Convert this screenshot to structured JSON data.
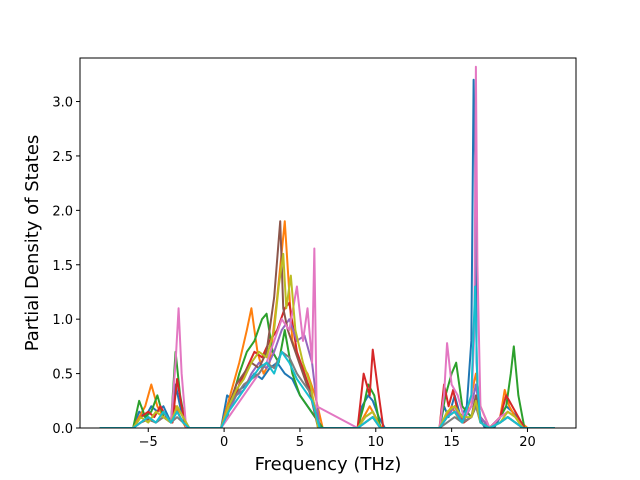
{
  "chart_data": {
    "type": "line",
    "title": "",
    "xlabel": "Frequency (THz)",
    "ylabel": "Partial Density of States",
    "xlim": [
      -9.5,
      23.2
    ],
    "ylim": [
      0,
      3.4
    ],
    "xticks": [
      -5,
      0,
      5,
      10,
      15,
      20
    ],
    "yticks": [
      0.0,
      0.5,
      1.0,
      1.5,
      2.0,
      2.5,
      3.0
    ],
    "xtick_labels": [
      "−5",
      "0",
      "5",
      "10",
      "15",
      "20"
    ],
    "ytick_labels": [
      "0.0",
      "0.5",
      "1.0",
      "1.5",
      "2.0",
      "2.5",
      "3.0"
    ],
    "grid": false,
    "legend": "none",
    "series": [
      {
        "color": "#1f77b4",
        "x": [
          -8.2,
          -6,
          -5.6,
          -5.2,
          -4.8,
          -4.4,
          -4,
          -3.5,
          -3.2,
          -2.9,
          -2.5,
          -0.2,
          0.2,
          0.6,
          1,
          1.5,
          2,
          2.5,
          3,
          3.5,
          4,
          4.5,
          5,
          5.5,
          6,
          6.5,
          8.8,
          9.1,
          9.5,
          9.8,
          10.2,
          10.6,
          14.2,
          14.5,
          14.8,
          15.2,
          15.6,
          16,
          16.3,
          16.45,
          16.55,
          16.65,
          16.8,
          17.2,
          17.8,
          18.2,
          18.6,
          19,
          19.3,
          19.6,
          20,
          21.8
        ],
        "y": [
          0,
          0,
          0.15,
          0.1,
          0.2,
          0.15,
          0.2,
          0.05,
          0.4,
          0.2,
          0,
          0,
          0.3,
          0.25,
          0.35,
          0.4,
          0.5,
          0.45,
          0.55,
          0.6,
          0.5,
          0.45,
          0.3,
          0.2,
          0.1,
          0,
          0,
          0.2,
          0.3,
          0.25,
          0.1,
          0,
          0,
          0.2,
          0.1,
          0.3,
          0.1,
          0.2,
          0.8,
          3.2,
          2.5,
          0.6,
          0.1,
          0,
          0,
          0.1,
          0.2,
          0.15,
          0.1,
          0,
          0,
          0
        ]
      },
      {
        "color": "#ff7f0e",
        "x": [
          -8.2,
          -6,
          -5.6,
          -5.2,
          -4.8,
          -4.4,
          -4,
          -3.5,
          -3.2,
          -2.9,
          -2.5,
          -0.2,
          0.2,
          0.6,
          1,
          1.5,
          1.8,
          2.2,
          2.6,
          3,
          3.5,
          4,
          4.5,
          5,
          5.5,
          6,
          6.5,
          8.8,
          9.2,
          9.6,
          10,
          10.4,
          14.2,
          14.6,
          15,
          15.4,
          15.8,
          16.3,
          16.6,
          16.9,
          17.5,
          18.2,
          18.5,
          18.8,
          19.2,
          19.6,
          20,
          21.8
        ],
        "y": [
          0,
          0,
          0.1,
          0.2,
          0.4,
          0.2,
          0.1,
          0.05,
          0.2,
          0.1,
          0,
          0,
          0.2,
          0.4,
          0.6,
          0.9,
          1.1,
          0.7,
          0.5,
          0.6,
          1.2,
          1.9,
          0.8,
          0.6,
          0.5,
          0.3,
          0,
          0,
          0.1,
          0.2,
          0.1,
          0,
          0,
          0.1,
          0.2,
          0.1,
          0.05,
          0.3,
          0.5,
          0.2,
          0,
          0.1,
          0.35,
          0.2,
          0.1,
          0.05,
          0,
          0
        ]
      },
      {
        "color": "#2ca02c",
        "x": [
          -8.2,
          -6,
          -5.6,
          -5.2,
          -4.8,
          -4.4,
          -4,
          -3.5,
          -3.2,
          -2.9,
          -2.5,
          -0.2,
          0.2,
          0.6,
          1,
          1.5,
          2,
          2.5,
          2.8,
          3.2,
          3.6,
          4,
          4.5,
          5,
          5.5,
          6,
          6.5,
          8.8,
          9.2,
          9.5,
          9.9,
          10.3,
          14.2,
          14.6,
          15,
          15.3,
          15.7,
          16.3,
          16.6,
          16.9,
          17.5,
          18.2,
          18.6,
          18.9,
          19.1,
          19.4,
          19.8,
          21.8
        ],
        "y": [
          0,
          0,
          0.25,
          0.1,
          0.15,
          0.3,
          0.1,
          0.05,
          0.7,
          0.3,
          0,
          0,
          0.1,
          0.3,
          0.5,
          0.7,
          0.8,
          1.0,
          1.05,
          0.7,
          0.6,
          0.9,
          0.5,
          0.3,
          0.2,
          0.1,
          0,
          0,
          0.2,
          0.4,
          0.3,
          0,
          0,
          0.3,
          0.5,
          0.6,
          0.2,
          0.1,
          0.2,
          0.1,
          0,
          0.1,
          0.2,
          0.5,
          0.75,
          0.3,
          0,
          0
        ]
      },
      {
        "color": "#d62728",
        "x": [
          -8.2,
          -6,
          -5.5,
          -5,
          -4.6,
          -4.2,
          -3.8,
          -3.4,
          -3.1,
          -2.8,
          -2.5,
          -0.2,
          0.2,
          0.6,
          1,
          1.5,
          2,
          2.5,
          3,
          3.5,
          4,
          4.3,
          4.8,
          5.3,
          5.8,
          6.2,
          8.8,
          9.2,
          9.6,
          9.8,
          10.1,
          10.5,
          14.2,
          14.5,
          14.8,
          15.1,
          15.4,
          15.8,
          16.3,
          16.6,
          16.9,
          17.5,
          18.2,
          18.6,
          19,
          19.4,
          19.8,
          21.8
        ],
        "y": [
          0,
          0,
          0.1,
          0.15,
          0.1,
          0.2,
          0.1,
          0.05,
          0.45,
          0.2,
          0,
          0,
          0.15,
          0.25,
          0.4,
          0.55,
          0.7,
          0.65,
          0.8,
          0.9,
          1.1,
          1.15,
          0.7,
          0.5,
          0.3,
          0,
          0,
          0.5,
          0.3,
          0.72,
          0.4,
          0,
          0,
          0.4,
          0.2,
          0.35,
          0.15,
          0.05,
          0.1,
          0.2,
          0.1,
          0,
          0.1,
          0.3,
          0.2,
          0.1,
          0,
          0
        ]
      },
      {
        "color": "#9467bd",
        "x": [
          -8.2,
          -6,
          -5.5,
          -5,
          -4.5,
          -4,
          -3.5,
          -3.1,
          -2.7,
          -2.3,
          -0.2,
          0.3,
          0.8,
          1.3,
          1.8,
          2.3,
          2.8,
          3.3,
          3.8,
          4.3,
          4.8,
          5.3,
          5.8,
          6.3,
          8.8,
          9.3,
          9.8,
          10.3,
          14.2,
          14.7,
          15.2,
          15.7,
          16.3,
          16.6,
          16.9,
          17.5,
          18.2,
          18.7,
          19.2,
          19.7,
          21.8
        ],
        "y": [
          0,
          0,
          0.05,
          0.1,
          0.05,
          0.1,
          0.05,
          0.2,
          0.1,
          0,
          0,
          0.15,
          0.3,
          0.35,
          0.5,
          0.6,
          0.55,
          0.7,
          0.9,
          1.0,
          0.8,
          0.85,
          0.6,
          0,
          0,
          0.1,
          0.15,
          0,
          0,
          0.1,
          0.2,
          0.05,
          0.2,
          0.4,
          0.1,
          0,
          0.05,
          0.1,
          0.05,
          0,
          0
        ]
      },
      {
        "color": "#8c564b",
        "x": [
          -8.2,
          -6,
          -5.5,
          -5,
          -4.5,
          -4,
          -3.5,
          -3.1,
          -2.7,
          -2.3,
          -0.2,
          0.3,
          0.8,
          1.3,
          1.8,
          2.3,
          2.8,
          3.3,
          3.7,
          3.9,
          4.2,
          4.7,
          5.2,
          5.7,
          6.2,
          8.8,
          9.3,
          9.8,
          10.3,
          14.2,
          14.7,
          15.2,
          15.7,
          16.3,
          16.6,
          16.9,
          17.5,
          18.2,
          18.7,
          19.2,
          19.7,
          21.8
        ],
        "y": [
          0,
          0,
          0.05,
          0.08,
          0.05,
          0.1,
          0.05,
          0.15,
          0.05,
          0,
          0,
          0.2,
          0.4,
          0.5,
          0.6,
          0.55,
          0.7,
          1.2,
          1.9,
          1.1,
          0.9,
          0.7,
          0.5,
          0.3,
          0,
          0,
          0.05,
          0.1,
          0,
          0,
          0.1,
          0.15,
          0.05,
          0.1,
          0.3,
          0.05,
          0,
          0.05,
          0.1,
          0.05,
          0,
          0
        ]
      },
      {
        "color": "#e377c2",
        "x": [
          -8.2,
          -6,
          -5.5,
          -5,
          -4.5,
          -4,
          -3.5,
          -3.2,
          -3.0,
          -2.8,
          -2.5,
          -0.2,
          0.3,
          0.8,
          1.3,
          1.8,
          2.3,
          2.8,
          3.3,
          3.8,
          4.3,
          4.8,
          5.2,
          5.5,
          5.8,
          5.95,
          6.1,
          8.8,
          9.3,
          9.8,
          10.3,
          14.2,
          14.5,
          14.7,
          15,
          15.4,
          15.8,
          16.3,
          16.5,
          16.6,
          16.7,
          16.9,
          17.5,
          18.2,
          18.7,
          19.2,
          19.7,
          21.8
        ],
        "y": [
          0,
          0,
          0.05,
          0.1,
          0.05,
          0.1,
          0.05,
          0.6,
          1.1,
          0.5,
          0,
          0,
          0.1,
          0.2,
          0.3,
          0.4,
          0.5,
          0.6,
          0.8,
          1.0,
          0.9,
          1.3,
          0.8,
          1.1,
          0.6,
          1.65,
          0.2,
          0,
          0.05,
          0.1,
          0,
          0,
          0.3,
          0.78,
          0.4,
          0.3,
          0.1,
          0.2,
          0.9,
          3.32,
          1.5,
          0.2,
          0,
          0.1,
          0.15,
          0.1,
          0,
          0
        ]
      },
      {
        "color": "#7f7f7f",
        "x": [
          -8.2,
          -6,
          -5.5,
          -5,
          -4.5,
          -4,
          -3.5,
          -3.1,
          -2.7,
          -2.3,
          -0.2,
          0.3,
          0.8,
          1.3,
          1.8,
          2.3,
          2.8,
          3.3,
          3.8,
          4.3,
          4.8,
          5.3,
          5.8,
          6.3,
          8.8,
          9.3,
          9.8,
          10.3,
          14.2,
          14.7,
          15.2,
          15.7,
          16.3,
          16.6,
          16.9,
          17.5,
          18.2,
          18.7,
          19.2,
          19.7,
          21.8
        ],
        "y": [
          0,
          0,
          0.05,
          0.1,
          0.05,
          0.1,
          0.05,
          0.1,
          0.05,
          0,
          0,
          0.2,
          0.3,
          0.4,
          0.45,
          0.5,
          0.6,
          0.55,
          0.7,
          0.65,
          0.5,
          0.4,
          0.3,
          0,
          0,
          0.05,
          0.1,
          0,
          0,
          0.05,
          0.1,
          0.05,
          0.1,
          0.2,
          0.05,
          0,
          0.05,
          0.1,
          0.05,
          0,
          0
        ]
      },
      {
        "color": "#bcbd22",
        "x": [
          -8.2,
          -6,
          -5.5,
          -5,
          -4.5,
          -4,
          -3.5,
          -3.1,
          -2.7,
          -2.3,
          -0.2,
          0.3,
          0.8,
          1.3,
          1.8,
          2.3,
          2.8,
          3.3,
          3.6,
          3.9,
          4.1,
          4.4,
          4.7,
          5.2,
          5.7,
          6.2,
          8.8,
          9.3,
          9.8,
          10.3,
          14.2,
          14.7,
          15.2,
          15.7,
          16.3,
          16.6,
          16.9,
          17.5,
          18.2,
          18.7,
          19.2,
          19.7,
          21.8
        ],
        "y": [
          0,
          0,
          0.1,
          0.05,
          0.15,
          0.1,
          0.05,
          0.2,
          0.1,
          0,
          0,
          0.2,
          0.35,
          0.45,
          0.6,
          0.7,
          0.65,
          0.9,
          1.3,
          1.6,
          1.1,
          1.4,
          0.9,
          0.6,
          0.4,
          0,
          0,
          0.1,
          0.15,
          0,
          0,
          0.15,
          0.2,
          0.1,
          0.1,
          0.25,
          0.05,
          0,
          0.05,
          0.15,
          0.1,
          0,
          0
        ]
      },
      {
        "color": "#17becf",
        "x": [
          -8.2,
          -6,
          -5.5,
          -5,
          -4.5,
          -4,
          -3.5,
          -3.1,
          -2.7,
          -2.3,
          -0.2,
          0.3,
          0.8,
          1.3,
          1.8,
          2.3,
          2.8,
          3.3,
          3.8,
          4.3,
          4.8,
          5.3,
          5.8,
          6.3,
          8.8,
          9.3,
          9.8,
          10.3,
          14.2,
          14.7,
          15.2,
          15.7,
          16.3,
          16.55,
          16.7,
          16.9,
          17.5,
          18.2,
          18.7,
          19.2,
          19.7,
          21.8
        ],
        "y": [
          0,
          0,
          0.05,
          0.1,
          0.05,
          0.15,
          0.05,
          0.15,
          0.05,
          0,
          0,
          0.15,
          0.25,
          0.35,
          0.45,
          0.55,
          0.6,
          0.5,
          0.7,
          0.6,
          0.45,
          0.35,
          0.25,
          0,
          0,
          0.05,
          0.1,
          0,
          0,
          0.1,
          0.15,
          0.05,
          0.3,
          1.3,
          0.4,
          0.05,
          0,
          0.05,
          0.1,
          0.05,
          0,
          0
        ]
      }
    ]
  }
}
